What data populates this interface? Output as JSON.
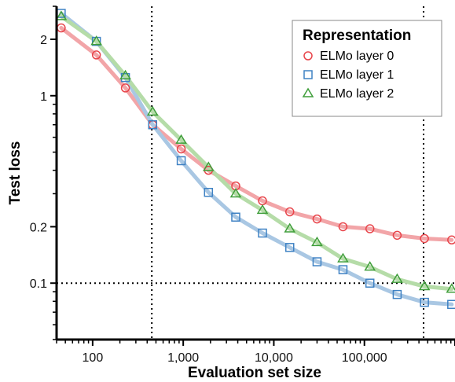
{
  "chart_data": {
    "type": "line",
    "xlabel": "Evaluation set size",
    "ylabel": "Test loss",
    "xscale": "log",
    "yscale": "log",
    "xlim": [
      40,
      1000000
    ],
    "ylim": [
      0.05,
      3.0
    ],
    "x_ticks": [
      100,
      1000,
      10000,
      100000
    ],
    "x_tick_labels": [
      "100",
      "1,000",
      "10,000",
      "100,000"
    ],
    "y_ticks": [
      0.1,
      0.2,
      1,
      2
    ],
    "y_tick_labels": [
      "0.1",
      "0.2",
      "1",
      "2"
    ],
    "reference_lines": {
      "x": [
        450,
        450000
      ],
      "y": [
        0.1
      ]
    },
    "legend": {
      "title": "Representation",
      "position": "top-right"
    },
    "series": [
      {
        "name": "ELMo layer 0",
        "marker": "circle",
        "color": "#e8444a",
        "line_color": "#f2a5a8",
        "x": [
          45,
          110,
          230,
          460,
          950,
          1900,
          3800,
          7500,
          15000,
          30000,
          58000,
          115000,
          230000,
          460000,
          920000
        ],
        "y": [
          2.3,
          1.65,
          1.1,
          0.7,
          0.52,
          0.4,
          0.33,
          0.275,
          0.24,
          0.22,
          0.2,
          0.195,
          0.18,
          0.173,
          0.17
        ]
      },
      {
        "name": "ELMo layer 1",
        "marker": "square",
        "color": "#3f82c4",
        "line_color": "#a9c7e3",
        "x": [
          45,
          110,
          230,
          460,
          950,
          1900,
          3800,
          7500,
          15000,
          30000,
          58000,
          115000,
          230000,
          460000,
          920000
        ],
        "y": [
          2.75,
          1.95,
          1.25,
          0.7,
          0.45,
          0.305,
          0.225,
          0.185,
          0.155,
          0.13,
          0.118,
          0.1,
          0.087,
          0.079,
          0.077
        ]
      },
      {
        "name": "ELMo layer 2",
        "marker": "triangle",
        "color": "#3f9e3a",
        "line_color": "#b5dca8",
        "x": [
          45,
          110,
          230,
          460,
          950,
          1900,
          3800,
          7500,
          15000,
          30000,
          58000,
          115000,
          230000,
          460000,
          920000
        ],
        "y": [
          2.65,
          1.95,
          1.28,
          0.82,
          0.58,
          0.415,
          0.3,
          0.245,
          0.195,
          0.165,
          0.135,
          0.122,
          0.105,
          0.096,
          0.093
        ]
      }
    ]
  }
}
